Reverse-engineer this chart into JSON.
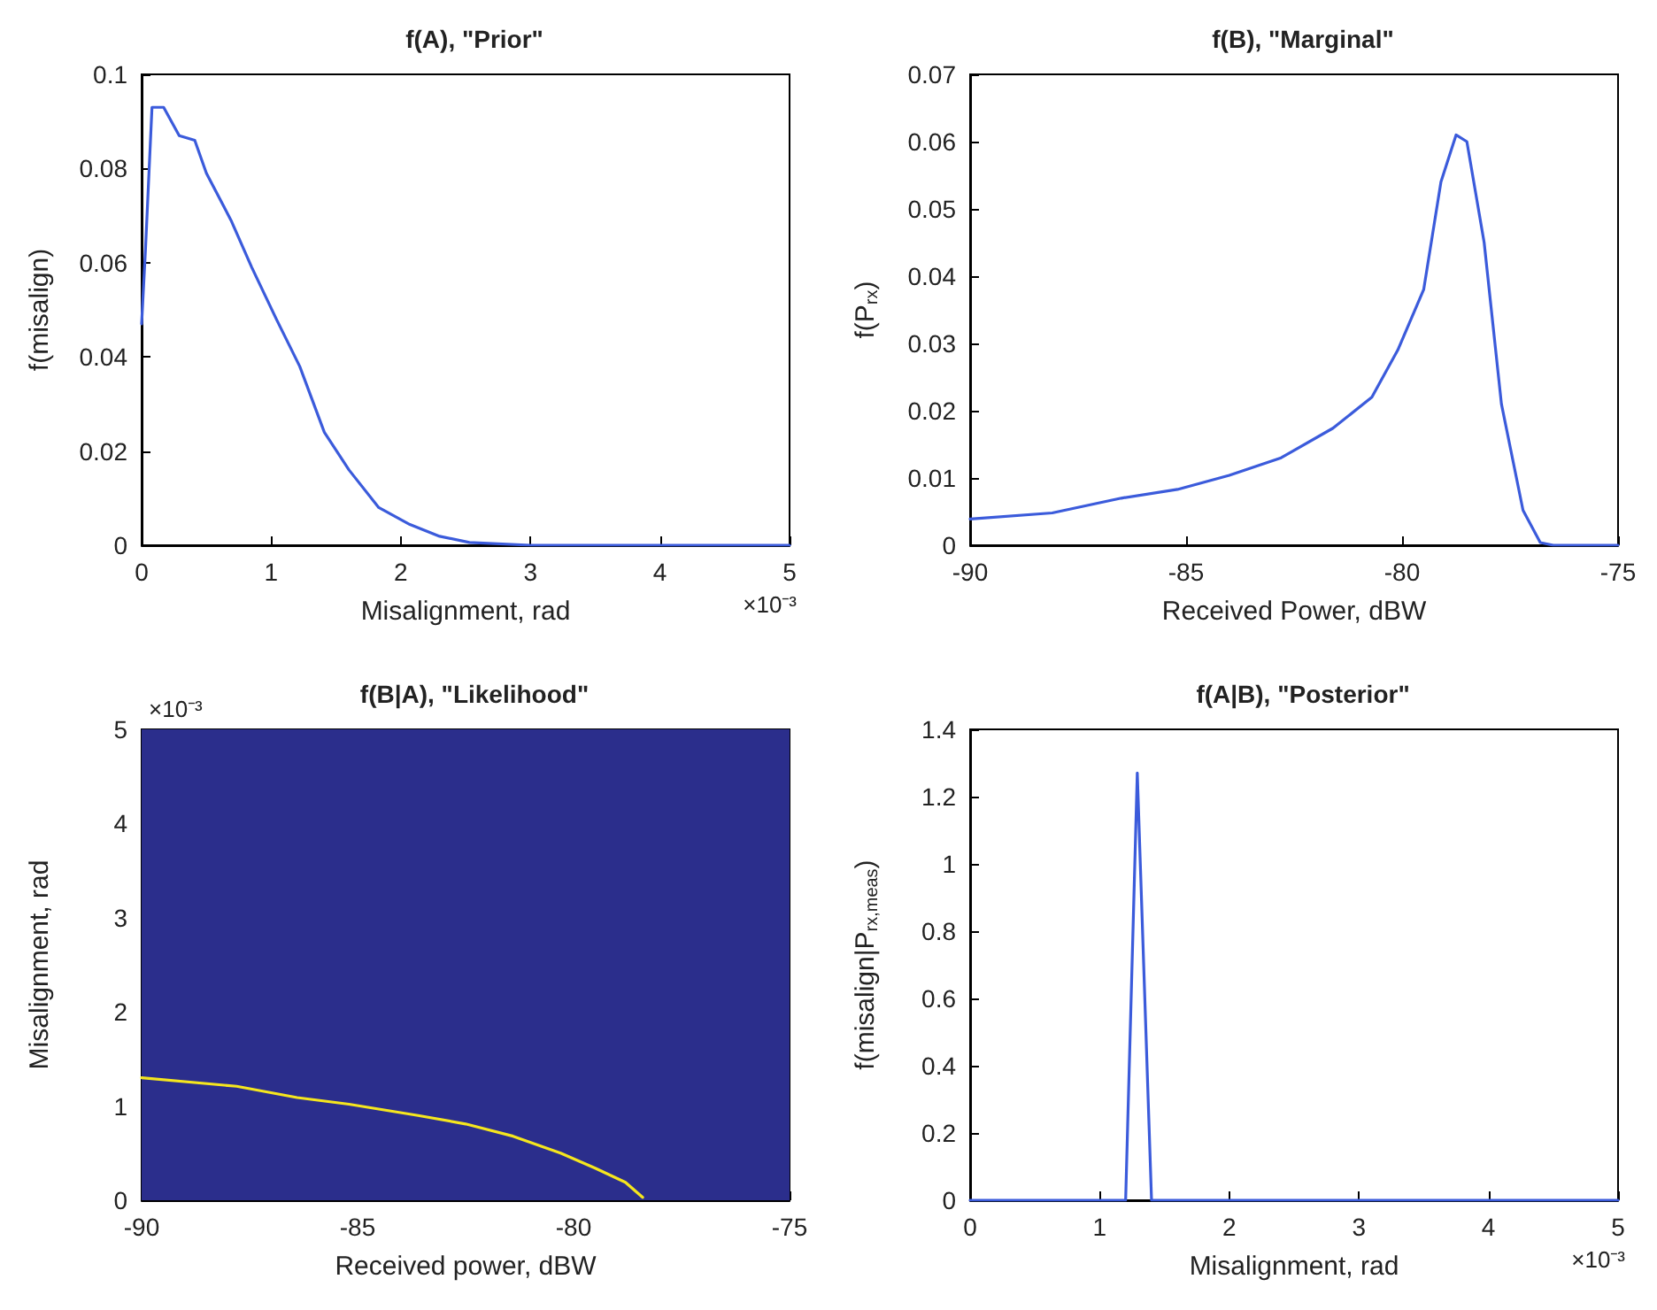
{
  "chart_data": [
    {
      "type": "line",
      "title": "f(A), \"Prior\"",
      "xlabel": "Misalignment, rad",
      "ylabel": "f(misalign)",
      "annotations": [
        "×10⁻³"
      ],
      "x": [
        0,
        0.03,
        0.08,
        0.17,
        0.29,
        0.41,
        0.5,
        0.69,
        0.85,
        1.04,
        1.22,
        1.41,
        1.6,
        1.83,
        2.07,
        2.3,
        2.53,
        3.0,
        5
      ],
      "series": [
        {
          "color": "#3b5bdb",
          "values": [
            0.047,
            0.063,
            0.093,
            0.093,
            0.087,
            0.086,
            0.079,
            0.069,
            0.059,
            0.048,
            0.038,
            0.024,
            0.016,
            0.008,
            0.0044,
            0.0019,
            0.0006,
            0,
            0
          ]
        }
      ],
      "xlim": [
        0,
        5
      ],
      "xticks": [
        0,
        1,
        2,
        3,
        4,
        5
      ],
      "ylim": [
        0,
        0.1
      ],
      "yticks": [
        0,
        0.02,
        0.04,
        0.06,
        0.08,
        0.1
      ],
      "grid": false,
      "marker": "none",
      "line_style": "solid"
    },
    {
      "type": "line",
      "title": "f(B), \"Marginal\"",
      "xlabel": "Received Power, dBW",
      "ylabel": "f(P$_{rx}$)",
      "x": [
        -90,
        -88.1,
        -86.5,
        -85.2,
        -84,
        -82.8,
        -81.6,
        -80.7,
        -80.1,
        -79.5,
        -79.1,
        -78.75,
        -78.5,
        -78.1,
        -77.7,
        -77.2,
        -76.8,
        -76.5,
        -75
      ],
      "series": [
        {
          "color": "#3b5bdb",
          "values": [
            0.0039,
            0.0048,
            0.007,
            0.0083,
            0.0104,
            0.013,
            0.0174,
            0.022,
            0.029,
            0.038,
            0.054,
            0.061,
            0.06,
            0.045,
            0.021,
            0.0052,
            0.0004,
            0,
            0
          ]
        }
      ],
      "xlim": [
        -90,
        -75
      ],
      "xticks": [
        -90,
        -85,
        -80,
        -75
      ],
      "ylim": [
        0,
        0.07
      ],
      "yticks": [
        0,
        0.01,
        0.02,
        0.03,
        0.04,
        0.05,
        0.06,
        0.07
      ],
      "grid": false,
      "marker": "none",
      "line_style": "solid"
    },
    {
      "type": "line",
      "title": "f(B|A), \"Likelihood\"",
      "xlabel": "Received power, dBW",
      "ylabel": "Misalignment, rad",
      "annotations": [
        "×10⁻³"
      ],
      "x": [
        -90,
        -87.8,
        -86.4,
        -85.2,
        -83.6,
        -82.5,
        -81.4,
        -80.3,
        -79.5,
        -78.8,
        -78.4
      ],
      "series": [
        {
          "color": "#f5e61e",
          "values": [
            1.3,
            1.21,
            1.09,
            1.02,
            0.9,
            0.81,
            0.68,
            0.5,
            0.34,
            0.19,
            0.03
          ]
        }
      ],
      "bands": [
        {
          "axis": "y",
          "from": 0,
          "to": 5,
          "color": "#2b2e8c"
        }
      ],
      "xlim": [
        -90,
        -75
      ],
      "xticks": [
        -90,
        -85,
        -80,
        -75
      ],
      "ylim": [
        0,
        5
      ],
      "yticks": [
        0,
        1,
        2,
        3,
        4,
        5
      ],
      "grid": false,
      "marker": "none",
      "line_style": "solid"
    },
    {
      "type": "line",
      "title": "f(A|B), \"Posterior\"",
      "xlabel": "Misalignment, rad",
      "ylabel": "f(misalign|P$_{rx,meas}$)",
      "annotations": [
        "×10⁻³"
      ],
      "x": [
        0,
        1.2,
        1.29,
        1.4,
        5
      ],
      "series": [
        {
          "color": "#3b5bdb",
          "values": [
            0,
            0,
            1.27,
            0,
            0
          ]
        }
      ],
      "xlim": [
        0,
        5
      ],
      "xticks": [
        0,
        1,
        2,
        3,
        4,
        5
      ],
      "ylim": [
        0,
        1.4
      ],
      "yticks": [
        0,
        0.2,
        0.4,
        0.6,
        0.8,
        1,
        1.2,
        1.4
      ],
      "grid": false,
      "marker": "none",
      "line_style": "solid"
    }
  ]
}
